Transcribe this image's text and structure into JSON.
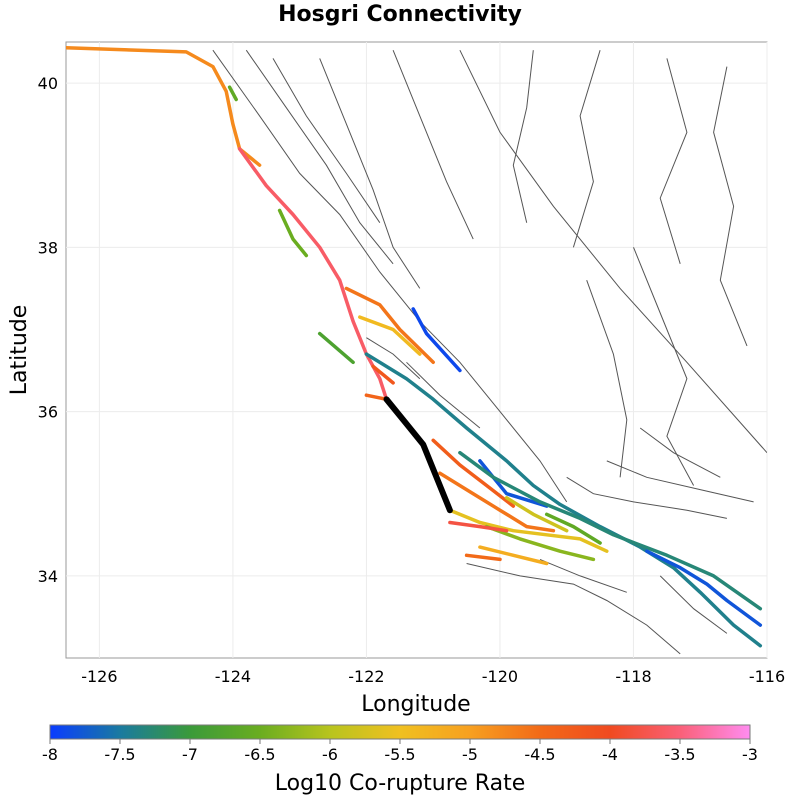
{
  "chart_data": {
    "type": "map",
    "title": "Hosgri Connectivity",
    "xlabel": "Longitude",
    "ylabel": "Latitude",
    "xlim": [
      -126.5,
      -116
    ],
    "ylim": [
      33,
      40.5
    ],
    "xticks": [
      -126,
      -124,
      -122,
      -120,
      -118,
      -116
    ],
    "yticks": [
      34,
      36,
      38,
      40
    ],
    "grid": true,
    "colorbar": {
      "label": "Log10 Co-rupture Rate",
      "range": [
        -8,
        -3
      ],
      "ticks": [
        -8,
        -7.5,
        -7,
        -6.5,
        -6,
        -5.5,
        -5,
        -4.5,
        -4,
        -3.5,
        -3
      ],
      "tick_labels": [
        "-8",
        "-7.5",
        "-7",
        "-6.5",
        "-6",
        "-5.5",
        "-5",
        "-4.5",
        "-4",
        "-3.5",
        "-3"
      ],
      "colors": [
        "#0a3cff",
        "#1a7aa0",
        "#3a9a3a",
        "#6aad20",
        "#b8c41e",
        "#f0c020",
        "#f7a020",
        "#f26a18",
        "#f04a20",
        "#fa6078",
        "#ff8cf0"
      ]
    },
    "highlighted_fault": {
      "color": "#000000",
      "points": [
        [
          -121.7,
          36.15
        ],
        [
          -121.4,
          35.85
        ],
        [
          -121.15,
          35.6
        ],
        [
          -121.0,
          35.3
        ],
        [
          -120.85,
          35.0
        ],
        [
          -120.75,
          34.8
        ]
      ]
    },
    "ruptures": [
      {
        "value": -4.8,
        "points": [
          [
            -126.5,
            40.43
          ],
          [
            -124.7,
            40.38
          ],
          [
            -124.3,
            40.2
          ],
          [
            -124.1,
            39.9
          ],
          [
            -124.0,
            39.5
          ],
          [
            -123.9,
            39.2
          ],
          [
            -123.6,
            39.0
          ]
        ]
      },
      {
        "value": -3.6,
        "points": [
          [
            -123.9,
            39.2
          ],
          [
            -123.5,
            38.75
          ],
          [
            -123.1,
            38.4
          ],
          [
            -122.7,
            38.0
          ],
          [
            -122.4,
            37.6
          ],
          [
            -122.2,
            37.1
          ],
          [
            -122.0,
            36.7
          ],
          [
            -121.8,
            36.4
          ],
          [
            -121.7,
            36.15
          ]
        ]
      },
      {
        "value": -6.5,
        "points": [
          [
            -123.3,
            38.45
          ],
          [
            -123.1,
            38.1
          ],
          [
            -122.9,
            37.9
          ]
        ]
      },
      {
        "value": -6.6,
        "points": [
          [
            -124.05,
            39.95
          ],
          [
            -123.95,
            39.8
          ]
        ]
      },
      {
        "value": -4.6,
        "points": [
          [
            -122.3,
            37.5
          ],
          [
            -121.8,
            37.3
          ],
          [
            -121.5,
            37.0
          ],
          [
            -121.0,
            36.6
          ]
        ]
      },
      {
        "value": -5.4,
        "points": [
          [
            -122.1,
            37.15
          ],
          [
            -121.6,
            37.0
          ],
          [
            -121.2,
            36.7
          ]
        ]
      },
      {
        "value": -7.9,
        "points": [
          [
            -121.3,
            37.25
          ],
          [
            -121.1,
            36.95
          ],
          [
            -120.6,
            36.5
          ]
        ]
      },
      {
        "value": -7.4,
        "points": [
          [
            -122.0,
            36.7
          ],
          [
            -121.4,
            36.4
          ],
          [
            -121.0,
            36.15
          ],
          [
            -120.5,
            35.8
          ],
          [
            -119.9,
            35.4
          ],
          [
            -119.5,
            35.1
          ],
          [
            -119.1,
            34.87
          ],
          [
            -118.5,
            34.6
          ],
          [
            -117.9,
            34.35
          ],
          [
            -117.4,
            34.1
          ],
          [
            -117.0,
            33.8
          ],
          [
            -116.5,
            33.4
          ],
          [
            -116.1,
            33.15
          ]
        ]
      },
      {
        "value": -4.2,
        "points": [
          [
            -121.9,
            36.55
          ],
          [
            -121.6,
            36.35
          ]
        ]
      },
      {
        "value": -4.4,
        "points": [
          [
            -122.0,
            36.2
          ],
          [
            -121.7,
            36.15
          ]
        ]
      },
      {
        "value": -6.8,
        "points": [
          [
            -122.7,
            36.95
          ],
          [
            -122.2,
            36.6
          ]
        ]
      },
      {
        "value": -7.8,
        "points": [
          [
            -120.3,
            35.4
          ],
          [
            -119.9,
            35.0
          ],
          [
            -119.3,
            34.85
          ]
        ]
      },
      {
        "value": -7.3,
        "points": [
          [
            -120.6,
            35.5
          ],
          [
            -120.1,
            35.2
          ],
          [
            -119.4,
            34.9
          ],
          [
            -118.8,
            34.7
          ],
          [
            -118.3,
            34.5
          ],
          [
            -117.5,
            34.25
          ],
          [
            -116.8,
            34.0
          ],
          [
            -116.1,
            33.6
          ]
        ]
      },
      {
        "value": -4.3,
        "points": [
          [
            -121.0,
            35.65
          ],
          [
            -120.6,
            35.35
          ],
          [
            -120.2,
            35.1
          ],
          [
            -119.8,
            34.85
          ]
        ]
      },
      {
        "value": -4.6,
        "points": [
          [
            -120.9,
            35.25
          ],
          [
            -120.4,
            35.0
          ],
          [
            -120.0,
            34.8
          ],
          [
            -119.6,
            34.6
          ],
          [
            -119.2,
            34.55
          ]
        ]
      },
      {
        "value": -5.6,
        "points": [
          [
            -120.75,
            34.8
          ],
          [
            -120.3,
            34.65
          ],
          [
            -119.8,
            34.55
          ],
          [
            -119.3,
            34.5
          ],
          [
            -118.8,
            34.45
          ],
          [
            -118.4,
            34.3
          ]
        ]
      },
      {
        "value": -6.3,
        "points": [
          [
            -120.2,
            34.6
          ],
          [
            -119.7,
            34.45
          ],
          [
            -119.1,
            34.3
          ],
          [
            -118.6,
            34.2
          ]
        ]
      },
      {
        "value": -3.8,
        "points": [
          [
            -120.75,
            34.65
          ],
          [
            -120.3,
            34.6
          ],
          [
            -119.9,
            34.55
          ]
        ]
      },
      {
        "value": -5.2,
        "points": [
          [
            -120.3,
            34.35
          ],
          [
            -119.8,
            34.25
          ],
          [
            -119.3,
            34.15
          ]
        ]
      },
      {
        "value": -4.5,
        "points": [
          [
            -120.5,
            34.25
          ],
          [
            -120.0,
            34.2
          ]
        ]
      },
      {
        "value": -7.8,
        "points": [
          [
            -117.8,
            34.3
          ],
          [
            -117.3,
            34.1
          ],
          [
            -116.9,
            33.9
          ],
          [
            -116.6,
            33.7
          ],
          [
            -116.1,
            33.4
          ]
        ]
      },
      {
        "value": -6.6,
        "points": [
          [
            -119.3,
            34.75
          ],
          [
            -118.9,
            34.6
          ],
          [
            -118.5,
            34.4
          ]
        ]
      },
      {
        "value": -5.8,
        "points": [
          [
            -119.9,
            34.95
          ],
          [
            -119.5,
            34.75
          ],
          [
            -119.0,
            34.55
          ]
        ]
      }
    ],
    "background_faults": [
      [
        [
          -124.3,
          40.4
        ],
        [
          -123.6,
          39.6
        ],
        [
          -123.0,
          38.9
        ],
        [
          -122.4,
          38.4
        ],
        [
          -121.8,
          37.7
        ],
        [
          -121.2,
          37.1
        ],
        [
          -120.6,
          36.6
        ],
        [
          -120.0,
          36.0
        ],
        [
          -119.4,
          35.4
        ],
        [
          -119.0,
          34.9
        ]
      ],
      [
        [
          -123.8,
          40.4
        ],
        [
          -123.2,
          39.7
        ],
        [
          -122.6,
          39.0
        ],
        [
          -122.1,
          38.3
        ],
        [
          -121.6,
          37.8
        ]
      ],
      [
        [
          -123.4,
          40.3
        ],
        [
          -122.9,
          39.6
        ],
        [
          -122.3,
          38.9
        ],
        [
          -121.8,
          38.3
        ]
      ],
      [
        [
          -122.7,
          40.3
        ],
        [
          -122.3,
          39.5
        ],
        [
          -121.9,
          38.7
        ],
        [
          -121.6,
          38.0
        ],
        [
          -121.2,
          37.5
        ]
      ],
      [
        [
          -121.6,
          40.4
        ],
        [
          -121.2,
          39.6
        ],
        [
          -120.8,
          38.8
        ],
        [
          -120.4,
          38.1
        ]
      ],
      [
        [
          -120.6,
          40.4
        ],
        [
          -120.0,
          39.4
        ],
        [
          -119.2,
          38.5
        ],
        [
          -118.2,
          37.5
        ],
        [
          -117.2,
          36.6
        ],
        [
          -116.0,
          35.5
        ]
      ],
      [
        [
          -119.5,
          40.4
        ],
        [
          -119.6,
          39.7
        ],
        [
          -119.8,
          39.0
        ],
        [
          -119.6,
          38.3
        ]
      ],
      [
        [
          -118.5,
          40.4
        ],
        [
          -118.8,
          39.6
        ],
        [
          -118.6,
          38.8
        ],
        [
          -118.9,
          38.0
        ]
      ],
      [
        [
          -117.5,
          40.3
        ],
        [
          -117.2,
          39.4
        ],
        [
          -117.6,
          38.6
        ],
        [
          -117.3,
          37.8
        ]
      ],
      [
        [
          -116.6,
          40.2
        ],
        [
          -116.8,
          39.4
        ],
        [
          -116.5,
          38.5
        ],
        [
          -116.7,
          37.6
        ],
        [
          -116.3,
          36.8
        ]
      ],
      [
        [
          -118.0,
          38.0
        ],
        [
          -117.6,
          37.2
        ],
        [
          -117.2,
          36.4
        ],
        [
          -117.5,
          35.7
        ],
        [
          -117.1,
          35.1
        ]
      ],
      [
        [
          -118.7,
          37.6
        ],
        [
          -118.3,
          36.7
        ],
        [
          -118.1,
          35.9
        ],
        [
          -118.2,
          35.2
        ]
      ],
      [
        [
          -119.0,
          35.2
        ],
        [
          -118.6,
          35.0
        ],
        [
          -118.0,
          34.9
        ],
        [
          -117.2,
          34.8
        ],
        [
          -116.6,
          34.7
        ]
      ],
      [
        [
          -118.4,
          35.4
        ],
        [
          -117.8,
          35.2
        ],
        [
          -117.0,
          35.05
        ],
        [
          -116.2,
          34.9
        ]
      ],
      [
        [
          -117.9,
          35.8
        ],
        [
          -117.4,
          35.5
        ],
        [
          -116.7,
          35.2
        ]
      ],
      [
        [
          -120.5,
          34.15
        ],
        [
          -119.7,
          34.0
        ],
        [
          -118.9,
          33.9
        ],
        [
          -118.4,
          33.7
        ],
        [
          -117.8,
          33.4
        ],
        [
          -117.3,
          33.05
        ]
      ],
      [
        [
          -119.4,
          34.2
        ],
        [
          -118.8,
          34.0
        ],
        [
          -118.1,
          33.8
        ]
      ],
      [
        [
          -117.6,
          34.0
        ],
        [
          -117.1,
          33.6
        ],
        [
          -116.6,
          33.3
        ]
      ],
      [
        [
          -121.4,
          36.6
        ],
        [
          -120.9,
          36.2
        ],
        [
          -120.3,
          35.8
        ]
      ],
      [
        [
          -122.0,
          36.9
        ],
        [
          -121.6,
          36.7
        ],
        [
          -121.2,
          36.4
        ]
      ]
    ]
  }
}
